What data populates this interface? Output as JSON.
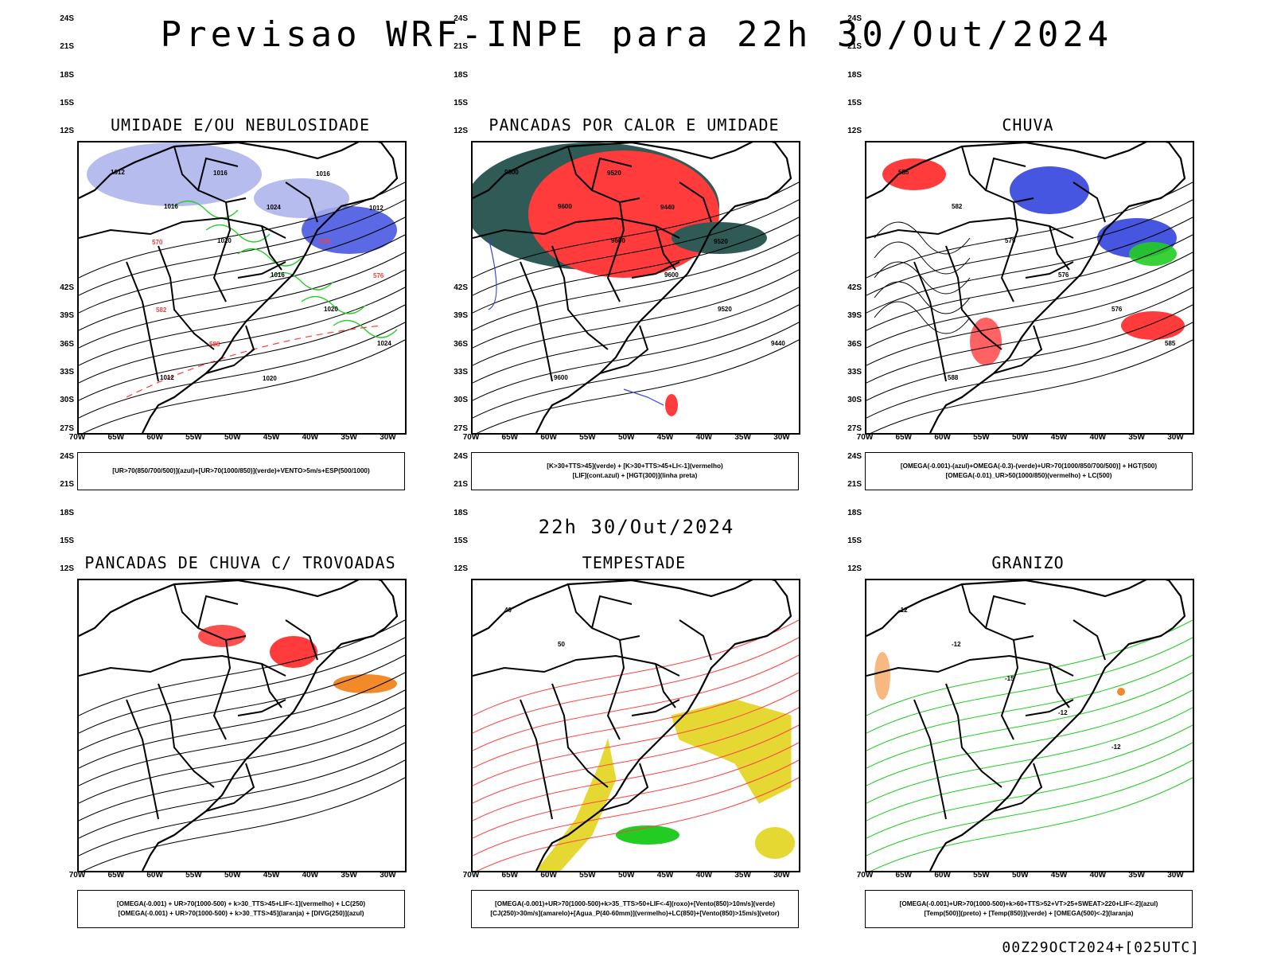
{
  "title": "Previsao WRF-INPE  para 22h 30/Out/2024",
  "subtitle": "22h 30/Out/2024",
  "footer": "00Z29OCT2024+[025UTC]",
  "lat_labels": [
    "12S",
    "15S",
    "18S",
    "21S",
    "24S",
    "27S",
    "30S",
    "33S",
    "36S",
    "39S",
    "42S"
  ],
  "lon_labels": [
    "70W",
    "65W",
    "60W",
    "55W",
    "50W",
    "45W",
    "40W",
    "35W",
    "30W"
  ],
  "panels": [
    {
      "title": "UMIDADE E/OU NEBULOSIDADE",
      "legend": [
        "[UR>70(850/700/500)](azul)+[UR>70(1000/850)](verde)+VENTO>5m/s+ESP(500/1000)"
      ],
      "contour_labels": [
        "1012",
        "1016",
        "1020",
        "1016",
        "1020",
        "1024",
        "1012",
        "1016",
        "1024",
        "570",
        "576",
        "582",
        "588",
        "1020",
        "1016",
        "1012",
        "570"
      ]
    },
    {
      "title": "PANCADAS POR CALOR E UMIDADE",
      "legend": [
        "[K>30+TTS>45](verde) + [K>30+TTS>45+LI<-1](vermelho)",
        "[LIF](cont.azul) + [HGT(300)](linha preta)"
      ],
      "contour_labels": [
        "9600",
        "9600",
        "9600",
        "9600",
        "9520",
        "9440",
        "9600",
        "9520",
        "9440",
        "9520"
      ]
    },
    {
      "title": "CHUVA",
      "legend": [
        "[OMEGA(-0.001)-(azul)+OMEGA(-0.3)-(verde)+UR>70(1000/850/700/500)] + HGT(500)",
        "[OMEGA(-0.01)_UR>50(1000/850)(vermelho) + LC(500)"
      ],
      "contour_labels": [
        "585",
        "582",
        "579",
        "576",
        "576",
        "585",
        "588"
      ]
    },
    {
      "title": "PANCADAS DE CHUVA C/ TROVOADAS",
      "legend": [
        "[OMEGA(-0.001) + UR>70(1000-500) + k>30_TTS>45+LIF<-1](vermelho) + LC(250)",
        "[OMEGA(-0.001) + UR>70(1000-500) + k>30_TTS>45](laranja) + [DIVG(250)](azul)"
      ],
      "contour_labels": []
    },
    {
      "title": "TEMPESTADE",
      "legend": [
        "[OMEGA(-0.001)+UR>70(1000-500)+k>35_TTS>50+LIF<-4](roxo)+[Vento(850)>10m/s](verde)",
        "[CJ(250)>30m/s](amarelo)+[Agua_P(40-60mm)](vermelho)+LC(850)+[Vento(850)>15m/s](vetor)"
      ],
      "contour_labels": [
        "40",
        "50"
      ]
    },
    {
      "title": "GRANIZO",
      "legend": [
        "[OMEGA(-0.001)+UR>70(1000-500)+k>60+TTS>52+VT>25+SWEAT>220+LIF<-2](azul)",
        "[Temp(500)](preto) + [Temp(850)](verde) + [OMEGA(500)<-2](laranja)"
      ],
      "contour_labels": [
        "-12",
        "-12",
        "-15",
        "-12",
        "-12"
      ]
    }
  ],
  "colors": {
    "blue": "#3344dd",
    "light_blue": "#a9b0ea",
    "green": "#22cc22",
    "red": "#ff3b3b",
    "dark_teal": "#2f5a55",
    "orange": "#f28a2a",
    "yellow": "#e6d832",
    "purple": "#aa33cc"
  }
}
